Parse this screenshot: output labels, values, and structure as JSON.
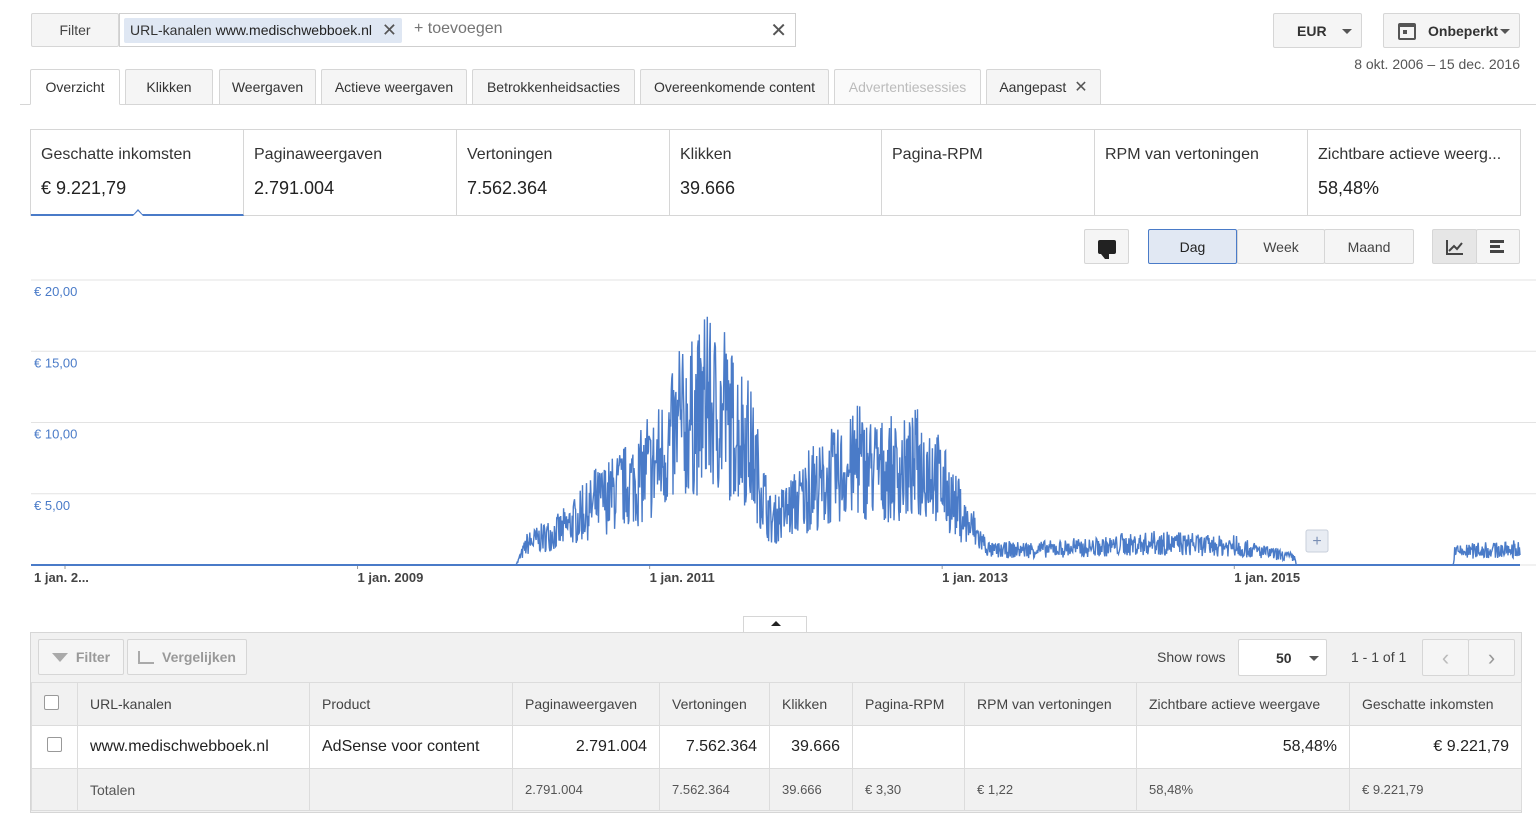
{
  "filter": {
    "button_label": "Filter",
    "chip_prefix": "URL-kanalen",
    "chip_value": "www.medischwebboek.nl",
    "add_placeholder": "+ toevoegen"
  },
  "currency": "EUR",
  "period": "Onbeperkt",
  "date_range": "8 okt. 2006 – 15 dec. 2016",
  "tabs": [
    {
      "label": "Overzicht"
    },
    {
      "label": "Klikken"
    },
    {
      "label": "Weergaven"
    },
    {
      "label": "Actieve weergaven"
    },
    {
      "label": "Betrokkenheidsacties"
    },
    {
      "label": "Overeenkomende content"
    },
    {
      "label": "Advertentiesessies"
    },
    {
      "label": "Aangepast"
    }
  ],
  "metrics": [
    {
      "label": "Geschatte inkomsten",
      "value": "€ 9.221,79"
    },
    {
      "label": "Paginaweergaven",
      "value": "2.791.004"
    },
    {
      "label": "Vertoningen",
      "value": "7.562.364"
    },
    {
      "label": "Klikken",
      "value": "39.666"
    },
    {
      "label": "Pagina-RPM",
      "value": ""
    },
    {
      "label": "RPM van vertoningen",
      "value": ""
    },
    {
      "label": "Zichtbare actieve weerg...",
      "value": "58,48%"
    }
  ],
  "granularity": {
    "day": "Dag",
    "week": "Week",
    "month": "Maand"
  },
  "chart_data": {
    "type": "line",
    "series": [
      {
        "color": "#4a7bc8",
        "points": [
          [
            "2006-10-08",
            0
          ],
          [
            "2010-02-01",
            0
          ],
          [
            "2010-03-01",
            1.5
          ],
          [
            "2010-06-01",
            2.5
          ],
          [
            "2010-09-01",
            4.5
          ],
          [
            "2011-01-01",
            6.5
          ],
          [
            "2011-04-01",
            10
          ],
          [
            "2011-06-01",
            11
          ],
          [
            "2011-09-01",
            9
          ],
          [
            "2011-11-01",
            3
          ],
          [
            "2012-02-01",
            5
          ],
          [
            "2012-06-01",
            7
          ],
          [
            "2012-09-01",
            6.5
          ],
          [
            "2012-12-01",
            7
          ],
          [
            "2013-03-01",
            3
          ],
          [
            "2013-05-01",
            1
          ],
          [
            "2014-01-01",
            1.2
          ],
          [
            "2014-06-01",
            1.5
          ],
          [
            "2015-01-01",
            1.3
          ],
          [
            "2015-06-01",
            0.5
          ],
          [
            "2015-06-05",
            0
          ],
          [
            "2016-07-01",
            0
          ],
          [
            "2016-07-05",
            0.9
          ],
          [
            "2016-12-15",
            1.1
          ]
        ]
      }
    ],
    "y_ticks": [
      "€ 5,00",
      "€ 10,00",
      "€ 15,00",
      "€ 20,00"
    ],
    "x_ticks": [
      "1 jan. 2...",
      "1 jan. 2009",
      "1 jan. 2011",
      "1 jan. 2013",
      "1 jan. 2015"
    ],
    "ylim": [
      0,
      20
    ],
    "xlim": [
      "2006-10-08",
      "2016-12-15"
    ],
    "grid": true
  },
  "table": {
    "filter_label": "Filter",
    "compare_label": "Vergelijken",
    "show_rows_label": "Show rows",
    "rows_value": "50",
    "paging": "1 - 1 of 1",
    "columns": [
      "URL-kanalen",
      "Product",
      "Paginaweergaven",
      "Vertoningen",
      "Klikken",
      "Pagina-RPM",
      "RPM van vertoningen",
      "Zichtbare actieve weergave",
      "Geschatte inkomsten"
    ],
    "rows": [
      [
        "www.medischwebboek.nl",
        "AdSense voor content",
        "2.791.004",
        "7.562.364",
        "39.666",
        "",
        "",
        "58,48%",
        "€ 9.221,79"
      ]
    ],
    "totals": [
      "Totalen",
      "",
      "2.791.004",
      "7.562.364",
      "39.666",
      "€ 3,30",
      "€ 1,22",
      "58,48%",
      "€ 9.221,79"
    ]
  }
}
